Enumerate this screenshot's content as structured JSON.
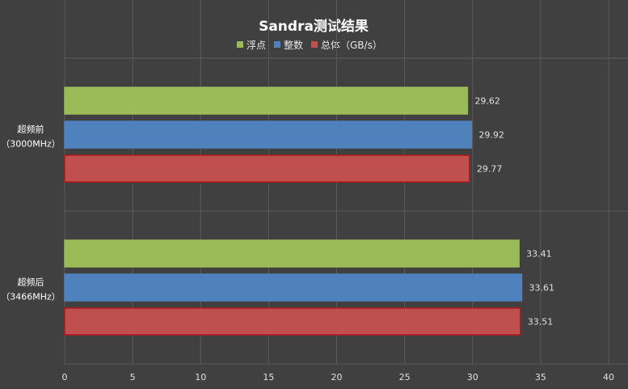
{
  "chart_data": {
    "type": "bar",
    "orientation": "horizontal",
    "title": "Sandra测试结果",
    "categories": [
      {
        "line1": "超频前",
        "line2": "（3000MHz）"
      },
      {
        "line1": "超频后",
        "line2": "（3466MHz）"
      }
    ],
    "series": [
      {
        "name": "浮点",
        "color": "#9bbb59",
        "border": "#9bbb59",
        "values": [
          29.62,
          33.41
        ]
      },
      {
        "name": "整数",
        "color": "#4f81bd",
        "border": "#4f81bd",
        "values": [
          29.92,
          33.61
        ]
      },
      {
        "name": "总体（GB/s）",
        "color": "#c0504d",
        "border": "#b3181c",
        "values": [
          29.77,
          33.51
        ]
      }
    ],
    "xlim": [
      0,
      40
    ],
    "x_ticks": [
      0,
      5,
      10,
      15,
      20,
      25,
      30,
      35,
      40
    ],
    "grid": true,
    "legend_position": "top-center",
    "colors": {
      "background": "#404040",
      "grid": "#5a5a5a"
    }
  }
}
